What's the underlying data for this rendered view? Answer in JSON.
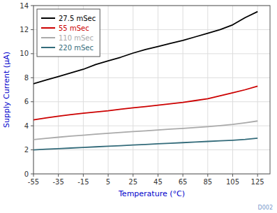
{
  "chart_data": {
    "type": "line",
    "xlabel": "Temperature (°C)",
    "ylabel": "Supply Current (μA)",
    "x": [
      -55,
      -45,
      -35,
      -25,
      -15,
      -5,
      5,
      15,
      25,
      35,
      45,
      55,
      65,
      75,
      85,
      95,
      105,
      115,
      125
    ],
    "series": [
      {
        "name": "27.5 mSec",
        "color": "#000000",
        "values": [
          7.5,
          7.8,
          8.1,
          8.4,
          8.7,
          9.1,
          9.4,
          9.7,
          10.05,
          10.35,
          10.6,
          10.85,
          11.1,
          11.4,
          11.7,
          12.0,
          12.4,
          13.0,
          13.5
        ]
      },
      {
        "name": "55 mSec",
        "color": "#cc0000",
        "values": [
          4.5,
          4.65,
          4.8,
          4.93,
          5.05,
          5.15,
          5.25,
          5.38,
          5.5,
          5.6,
          5.72,
          5.83,
          5.95,
          6.1,
          6.25,
          6.5,
          6.75,
          7.0,
          7.3
        ]
      },
      {
        "name": "110 mSec",
        "color": "#aaaaaa",
        "values": [
          2.85,
          2.95,
          3.05,
          3.15,
          3.22,
          3.3,
          3.38,
          3.45,
          3.52,
          3.58,
          3.65,
          3.72,
          3.78,
          3.85,
          3.93,
          4.02,
          4.12,
          4.25,
          4.4
        ]
      },
      {
        "name": "220 mSec",
        "color": "#336b7a",
        "values": [
          2.0,
          2.05,
          2.1,
          2.15,
          2.2,
          2.25,
          2.3,
          2.35,
          2.4,
          2.45,
          2.5,
          2.55,
          2.6,
          2.65,
          2.7,
          2.75,
          2.8,
          2.87,
          2.97
        ]
      }
    ],
    "xlim": [
      -55,
      135
    ],
    "ylim": [
      0,
      14
    ],
    "xticks": [
      -55,
      -35,
      -15,
      5,
      25,
      45,
      65,
      85,
      105,
      125
    ],
    "yticks": [
      0,
      2,
      4,
      6,
      8,
      10,
      12,
      14
    ],
    "grid": true,
    "legend": "upper left",
    "annotations": [
      "D002"
    ]
  }
}
